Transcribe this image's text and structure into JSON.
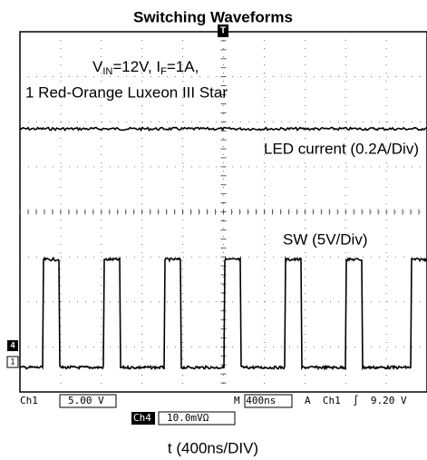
{
  "title": "Switching Waveforms",
  "annotations": {
    "condition": {
      "v": "V",
      "v_sub": "IN",
      "mid": "=12V, I",
      "i_sub": "F",
      "end": "=1A,"
    },
    "led_name": "1 Red-Orange Luxeon III Star",
    "led_current": "LED current (0.2A/Div)",
    "sw": "SW (5V/Div)"
  },
  "status": {
    "ch1": "Ch1",
    "ch1_scale": "5.00 V",
    "timebase": "M 400ns",
    "trigger": "A  Ch1  ∫  9.20 V",
    "ch4": "Ch4",
    "ch4_scale": "10.0mVΩ"
  },
  "markers": {
    "trigger_pos": "T",
    "ch1": "1",
    "ch4": "4"
  },
  "xlabel": "t (400ns/DIV)"
}
